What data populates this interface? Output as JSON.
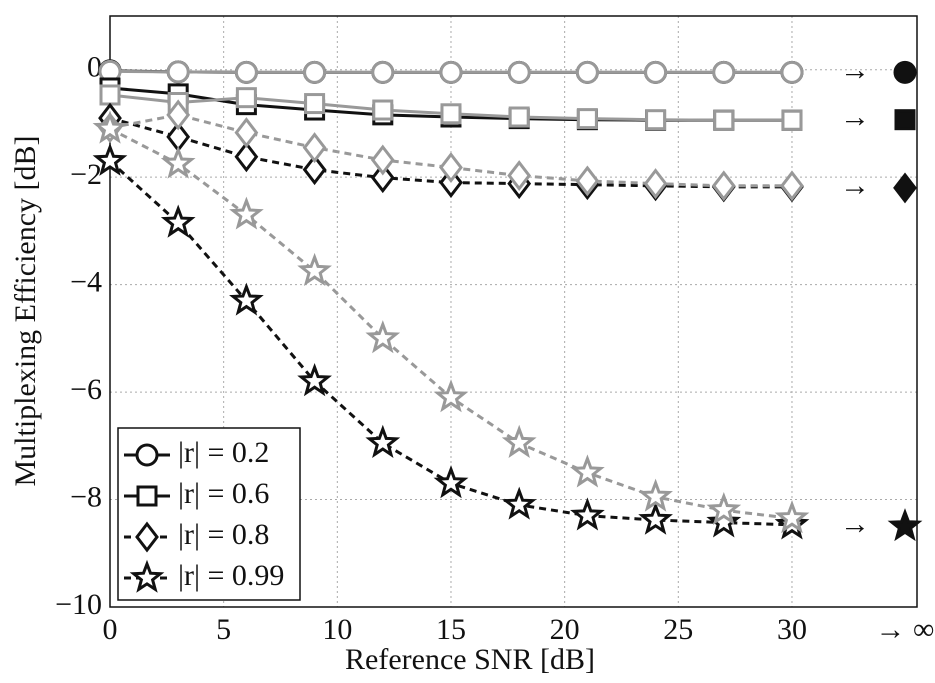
{
  "chart_data": {
    "type": "line",
    "x_label": "Reference SNR [dB]",
    "y_label": "Multiplexing Efficiency [dB]",
    "x": [
      0,
      3,
      6,
      9,
      12,
      15,
      18,
      21,
      24,
      27,
      30
    ],
    "xlim": [
      0,
      35.5
    ],
    "ylim": [
      -10,
      1
    ],
    "xticks": [
      0,
      5,
      10,
      15,
      20,
      25,
      30
    ],
    "yticks": [
      {
        "value": -10,
        "label": "−10"
      },
      {
        "value": -8,
        "label": "−8"
      },
      {
        "value": -6,
        "label": "−6"
      },
      {
        "value": -4,
        "label": "−4"
      },
      {
        "value": -2,
        "label": "−2"
      },
      0
    ],
    "grid": true,
    "legend": "lower left",
    "limit_arrow": "→",
    "limit_label": "→ ∞",
    "series": [
      {
        "name": "|r| = 0.2",
        "marker": "circle",
        "dashed": false,
        "color": "#111111",
        "color2": "#999999",
        "values": [
          -0.02,
          -0.04,
          -0.05,
          -0.05,
          -0.05,
          -0.05,
          -0.05,
          -0.05,
          -0.05,
          -0.05,
          -0.05
        ],
        "values2": [
          -0.03,
          -0.04,
          -0.05,
          -0.05,
          -0.05,
          -0.05,
          -0.05,
          -0.05,
          -0.05,
          -0.05,
          -0.05
        ],
        "limit": -0.05
      },
      {
        "name": "|r| = 0.6",
        "marker": "square",
        "dashed": false,
        "color": "#111111",
        "color2": "#999999",
        "values": [
          -0.34,
          -0.45,
          -0.65,
          -0.75,
          -0.84,
          -0.88,
          -0.91,
          -0.93,
          -0.94,
          -0.94,
          -0.94
        ],
        "values2": [
          -0.47,
          -0.61,
          -0.52,
          -0.63,
          -0.75,
          -0.82,
          -0.88,
          -0.91,
          -0.93,
          -0.94,
          -0.94
        ],
        "limit": -0.93
      },
      {
        "name": "|r| = 0.8",
        "marker": "diamond",
        "dashed": true,
        "color": "#111111",
        "color2": "#999999",
        "values": [
          -0.9,
          -1.25,
          -1.62,
          -1.86,
          -2.01,
          -2.1,
          -2.12,
          -2.14,
          -2.16,
          -2.18,
          -2.18
        ],
        "values2": [
          -1.08,
          -0.84,
          -1.17,
          -1.45,
          -1.68,
          -1.82,
          -1.97,
          -2.07,
          -2.12,
          -2.16,
          -2.16
        ],
        "limit": -2.2
      },
      {
        "name": "|r| = 0.99",
        "marker": "star",
        "dashed": true,
        "color": "#111111",
        "color2": "#999999",
        "values": [
          -1.7,
          -2.85,
          -4.3,
          -5.8,
          -6.95,
          -7.7,
          -8.1,
          -8.3,
          -8.38,
          -8.43,
          -8.47
        ],
        "values2": [
          -1.1,
          -1.75,
          -2.7,
          -3.75,
          -5.0,
          -6.1,
          -6.95,
          -7.5,
          -7.95,
          -8.2,
          -8.35
        ],
        "limit": -8.5
      }
    ]
  }
}
